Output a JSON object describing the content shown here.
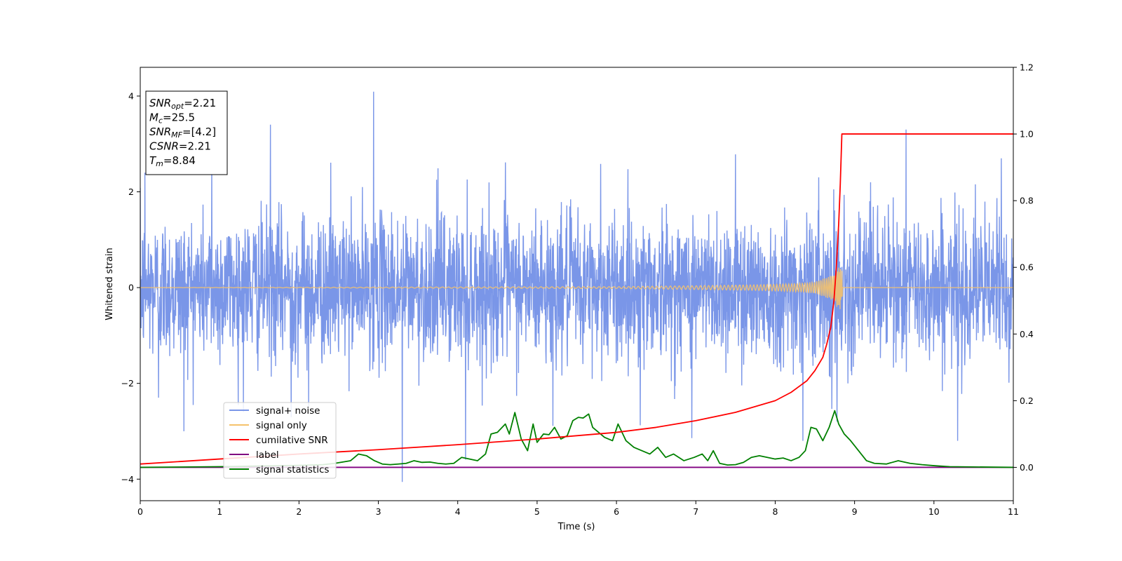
{
  "chart_data": {
    "type": "line",
    "title": "",
    "xlabel": "Time (s)",
    "ylabel": "Whitened strain",
    "xlim": [
      0,
      11
    ],
    "ylim_left": [
      -4.45,
      4.6
    ],
    "ylim_right": [
      -0.1,
      1.2
    ],
    "x_ticks": [
      0,
      1,
      2,
      3,
      4,
      5,
      6,
      7,
      8,
      9,
      10,
      11
    ],
    "y_ticks_left": [
      -4,
      -2,
      0,
      2,
      4
    ],
    "y_ticks_right": [
      0.0,
      0.2,
      0.4,
      0.6,
      0.8,
      1.0,
      1.2
    ],
    "x_tick_labels": [
      "0",
      "1",
      "2",
      "3",
      "4",
      "5",
      "6",
      "7",
      "8",
      "9",
      "10",
      "11"
    ],
    "y_tick_labels_left": [
      "−4",
      "−2",
      "0",
      "2",
      "4"
    ],
    "y_tick_labels_right": [
      "0.0",
      "0.2",
      "0.4",
      "0.6",
      "0.8",
      "1.0",
      "1.2"
    ],
    "grid": false,
    "legend_placement": "lower-left",
    "info_box": {
      "placement": "upper-left",
      "lines": [
        {
          "base": "SNR",
          "sub": "opt",
          "value": "=2.21"
        },
        {
          "base": "M",
          "sub": "c",
          "value": "=25.5"
        },
        {
          "base": "SNR",
          "sub": "MF",
          "value": "=[4.2]"
        },
        {
          "base": "CSNR",
          "sub": "",
          "value": "=2.21"
        },
        {
          "base": "T",
          "sub": "m",
          "value": "=8.84"
        }
      ]
    },
    "series": [
      {
        "name": "signal+ noise",
        "axis": "left",
        "color": "#7a96e8",
        "noise_sigma": 0.75,
        "peaks_x": [
          0.06,
          0.23,
          0.55,
          0.9,
          1.3,
          1.64,
          1.9,
          2.12,
          2.4,
          2.94,
          3.3,
          3.75,
          4.1,
          4.6,
          5.2,
          5.8,
          6.3,
          6.95,
          7.5,
          8.35,
          8.78,
          9.2,
          9.65,
          10.3,
          10.85
        ],
        "peaks_y": [
          2.4,
          -2.3,
          -3.0,
          2.7,
          -2.6,
          3.4,
          -2.7,
          -2.5,
          2.6,
          4.1,
          -4.05,
          2.5,
          -3.6,
          2.6,
          -2.9,
          2.6,
          -2.9,
          -3.15,
          2.8,
          -3.2,
          -3.2,
          2.2,
          3.3,
          -3.2,
          2.7
        ]
      },
      {
        "name": "signal only",
        "axis": "left",
        "color": "#f5c26b",
        "x": [
          0,
          6.0,
          7.0,
          7.8,
          8.2,
          8.5,
          8.7,
          8.8,
          8.84,
          8.85,
          11
        ],
        "envelope": [
          0.0,
          0.02,
          0.04,
          0.06,
          0.08,
          0.12,
          0.25,
          0.45,
          0.45,
          0.0,
          0.0
        ]
      },
      {
        "name": "cumilative SNR",
        "axis": "right",
        "color": "#ff0000",
        "x": [
          0,
          1,
          2,
          3,
          4,
          5,
          6,
          6.5,
          7,
          7.5,
          8,
          8.2,
          8.4,
          8.5,
          8.6,
          8.65,
          8.7,
          8.74,
          8.77,
          8.8,
          8.82,
          8.84,
          8.85,
          9,
          10,
          11
        ],
        "values": [
          0.01,
          0.025,
          0.04,
          0.053,
          0.068,
          0.085,
          0.105,
          0.12,
          0.14,
          0.165,
          0.2,
          0.225,
          0.26,
          0.29,
          0.33,
          0.37,
          0.42,
          0.5,
          0.6,
          0.73,
          0.85,
          1.0,
          1.0,
          1.0,
          1.0,
          1.0
        ]
      },
      {
        "name": "label",
        "axis": "right",
        "color": "#800080",
        "x": [
          0,
          11
        ],
        "values": [
          0.0,
          0.0
        ]
      },
      {
        "name": "signal statistics",
        "axis": "right",
        "color": "#008000",
        "x": [
          0,
          0.5,
          1,
          1.5,
          2,
          2.3,
          2.45,
          2.55,
          2.65,
          2.75,
          2.85,
          2.95,
          3.05,
          3.15,
          3.25,
          3.35,
          3.45,
          3.55,
          3.65,
          3.75,
          3.85,
          3.95,
          4.05,
          4.15,
          4.25,
          4.35,
          4.42,
          4.5,
          4.6,
          4.65,
          4.72,
          4.8,
          4.88,
          4.95,
          5.0,
          5.08,
          5.15,
          5.22,
          5.3,
          5.38,
          5.45,
          5.52,
          5.58,
          5.65,
          5.7,
          5.75,
          5.85,
          5.95,
          6.02,
          6.12,
          6.22,
          6.32,
          6.42,
          6.52,
          6.62,
          6.72,
          6.85,
          6.98,
          7.08,
          7.15,
          7.22,
          7.3,
          7.4,
          7.5,
          7.6,
          7.7,
          7.8,
          7.9,
          8.0,
          8.1,
          8.2,
          8.3,
          8.38,
          8.45,
          8.52,
          8.6,
          8.68,
          8.75,
          8.8,
          8.87,
          8.95,
          9.05,
          9.15,
          9.25,
          9.4,
          9.55,
          9.7,
          9.85,
          10.0,
          10.2,
          11
        ],
        "values": [
          0.0,
          0.001,
          0.002,
          0.004,
          0.006,
          0.008,
          0.012,
          0.016,
          0.02,
          0.04,
          0.035,
          0.02,
          0.01,
          0.008,
          0.01,
          0.012,
          0.02,
          0.015,
          0.016,
          0.012,
          0.01,
          0.012,
          0.03,
          0.025,
          0.02,
          0.04,
          0.1,
          0.105,
          0.13,
          0.1,
          0.1645,
          0.085,
          0.05,
          0.13,
          0.075,
          0.1,
          0.098,
          0.12,
          0.085,
          0.095,
          0.14,
          0.15,
          0.148,
          0.16,
          0.12,
          0.11,
          0.09,
          0.08,
          0.13,
          0.08,
          0.06,
          0.05,
          0.04,
          0.06,
          0.03,
          0.04,
          0.02,
          0.03,
          0.04,
          0.02,
          0.05,
          0.012,
          0.007,
          0.008,
          0.015,
          0.03,
          0.035,
          0.03,
          0.025,
          0.028,
          0.02,
          0.03,
          0.05,
          0.12,
          0.115,
          0.08,
          0.12,
          0.17,
          0.13,
          0.1,
          0.08,
          0.05,
          0.02,
          0.012,
          0.01,
          0.02,
          0.012,
          0.008,
          0.005,
          0.002,
          0.0
        ]
      }
    ]
  }
}
